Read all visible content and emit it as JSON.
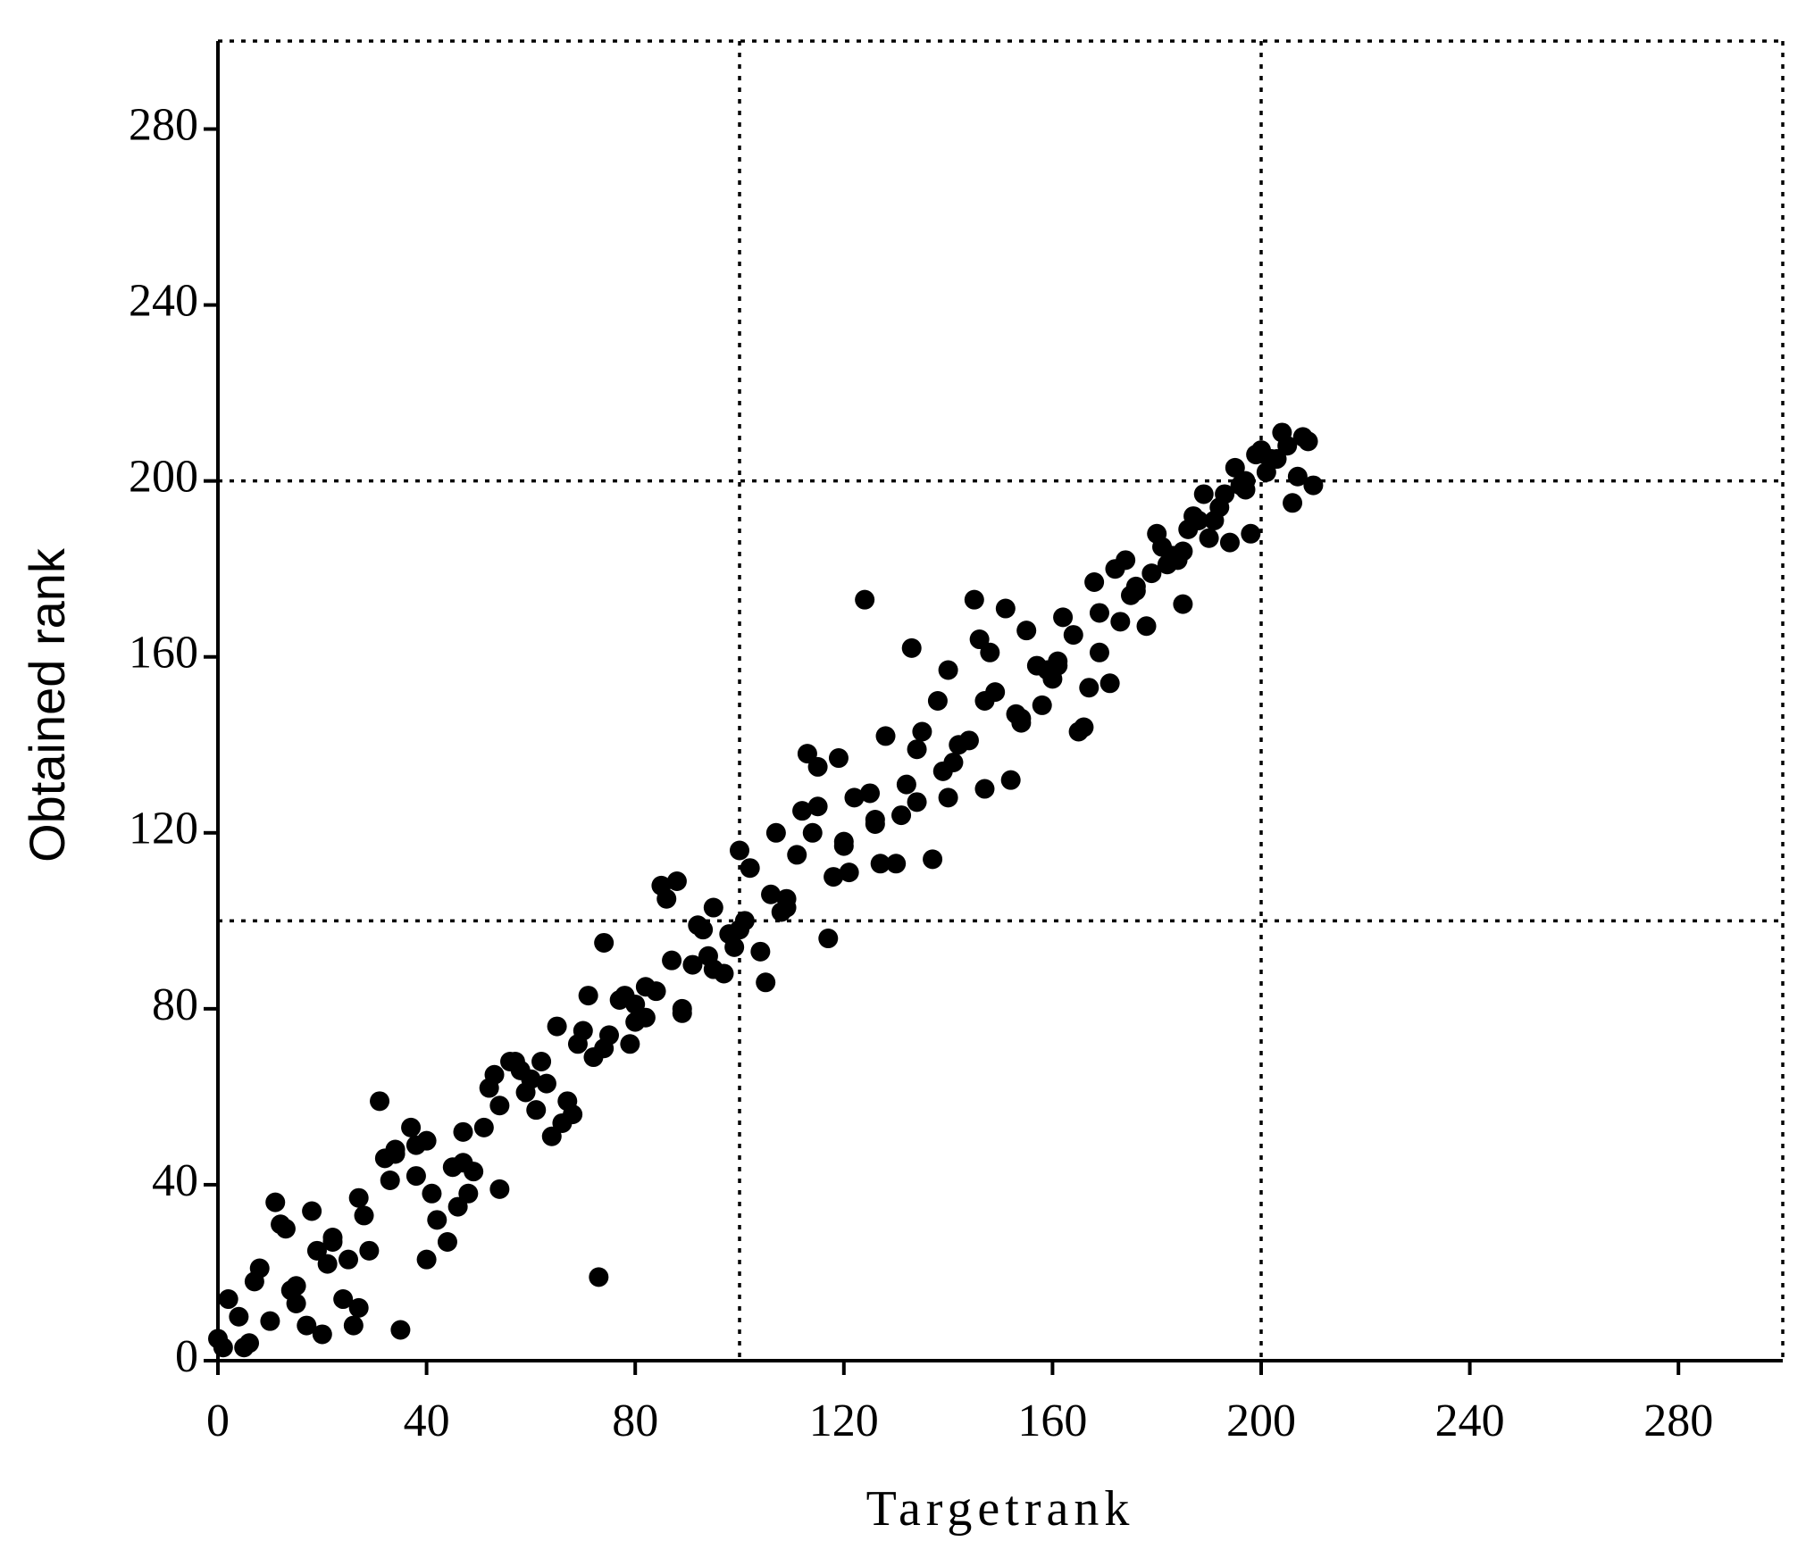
{
  "chart_data": {
    "type": "scatter",
    "x_label": "Targetrank",
    "y_label": "Obtained rank",
    "xlim": [
      0,
      300
    ],
    "ylim": [
      0,
      300
    ],
    "xticks": [
      0,
      40,
      80,
      120,
      160,
      200,
      240,
      280
    ],
    "yticks": [
      0,
      40,
      80,
      120,
      160,
      200,
      240,
      280
    ],
    "grid_lines": {
      "x": [
        100,
        200
      ],
      "y": [
        100,
        200
      ]
    },
    "color": "#000000",
    "x": [
      0,
      1,
      2,
      4,
      5,
      6,
      7,
      8,
      10,
      11,
      12,
      13,
      14,
      15,
      15,
      17,
      18,
      19,
      20,
      21,
      22,
      22,
      24,
      25,
      26,
      27,
      27,
      28,
      29,
      31,
      32,
      33,
      34,
      34,
      35,
      37,
      38,
      38,
      40,
      40,
      41,
      42,
      44,
      45,
      46,
      47,
      47,
      48,
      49,
      51,
      52,
      53,
      54,
      54,
      56,
      57,
      58,
      59,
      60,
      61,
      62,
      63,
      64,
      65,
      66,
      67,
      68,
      69,
      70,
      71,
      72,
      73,
      74,
      74,
      75,
      77,
      78,
      79,
      80,
      80,
      82,
      82,
      84,
      85,
      86,
      87,
      88,
      89,
      89,
      91,
      92,
      93,
      94,
      95,
      95,
      97,
      98,
      99,
      100,
      100,
      101,
      102,
      104,
      105,
      106,
      107,
      108,
      109,
      109,
      111,
      112,
      113,
      114,
      115,
      115,
      117,
      118,
      119,
      120,
      120,
      121,
      122,
      124,
      125,
      126,
      126,
      127,
      128,
      130,
      131,
      132,
      133,
      134,
      134,
      135,
      137,
      138,
      139,
      140,
      140,
      141,
      142,
      144,
      145,
      146,
      147,
      147,
      148,
      149,
      151,
      152,
      153,
      154,
      154,
      155,
      157,
      158,
      159,
      160,
      161,
      161,
      162,
      164,
      165,
      166,
      167,
      168,
      169,
      169,
      171,
      172,
      173,
      174,
      175,
      176,
      176,
      178,
      179,
      180,
      181,
      182,
      183,
      184,
      185,
      185,
      186,
      187,
      188,
      189,
      190,
      191,
      192,
      193,
      194,
      195,
      196,
      197,
      197,
      198,
      199,
      200,
      201,
      202,
      203,
      204,
      205,
      206,
      207,
      208,
      209,
      210
    ],
    "values": [
      5,
      3,
      14,
      10,
      3,
      4,
      18,
      21,
      9,
      36,
      31,
      30,
      16,
      17,
      13,
      8,
      34,
      25,
      6,
      22,
      28,
      27,
      14,
      23,
      8,
      37,
      12,
      33,
      25,
      59,
      46,
      41,
      47,
      48,
      7,
      53,
      49,
      42,
      50,
      23,
      38,
      32,
      27,
      44,
      35,
      52,
      45,
      38,
      43,
      53,
      62,
      65,
      39,
      58,
      68,
      68,
      66,
      61,
      64,
      57,
      68,
      63,
      51,
      76,
      54,
      59,
      56,
      72,
      75,
      83,
      69,
      19,
      95,
      71,
      74,
      82,
      83,
      72,
      77,
      81,
      78,
      85,
      84,
      108,
      105,
      91,
      109,
      80,
      79,
      90,
      99,
      98,
      92,
      103,
      89,
      88,
      97,
      94,
      116,
      98,
      100,
      112,
      93,
      86,
      106,
      120,
      102,
      103,
      105,
      115,
      125,
      138,
      120,
      135,
      126,
      96,
      110,
      137,
      118,
      117,
      111,
      128,
      173,
      129,
      123,
      122,
      113,
      142,
      113,
      124,
      131,
      162,
      127,
      139,
      143,
      114,
      150,
      134,
      157,
      128,
      136,
      140,
      141,
      173,
      164,
      130,
      150,
      161,
      152,
      171,
      132,
      147,
      146,
      145,
      166,
      158,
      149,
      157,
      155,
      159,
      158,
      169,
      165,
      143,
      144,
      153,
      177,
      170,
      161,
      154,
      180,
      168,
      182,
      174,
      175,
      176,
      167,
      179,
      188,
      185,
      181,
      183,
      182,
      172,
      184,
      189,
      192,
      191,
      197,
      187,
      191,
      194,
      197,
      186,
      203,
      199,
      198,
      200,
      188,
      206,
      207,
      202,
      205,
      205,
      211,
      208,
      195,
      201,
      210,
      209,
      199
    ]
  }
}
